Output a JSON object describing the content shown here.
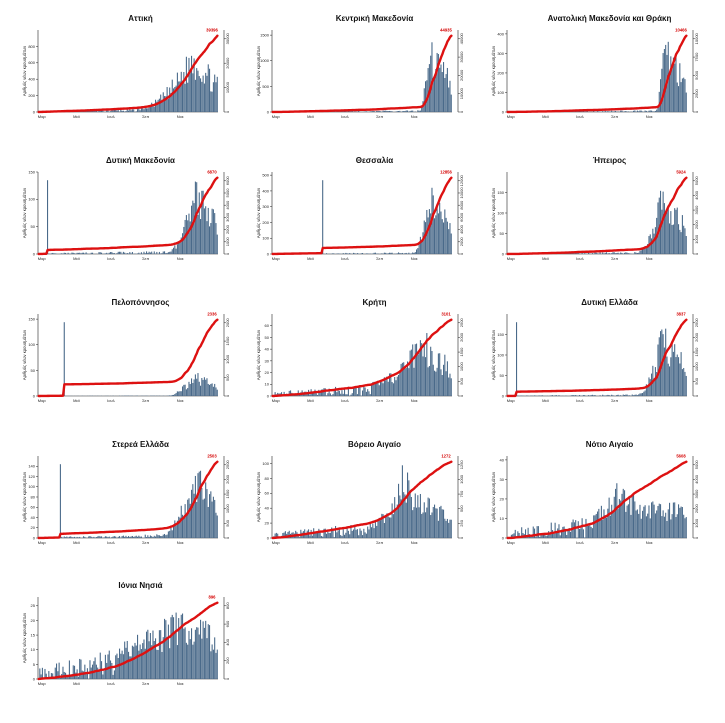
{
  "figure": {
    "y_axis_label": "Αριθμός νέων κρουσμάτων",
    "month_labels": [
      "Μαρ",
      "Μαϊ",
      "Ιουλ",
      "Σεπ",
      "Νοε"
    ]
  },
  "colors": {
    "bars": "#4a6a8a",
    "cumulative_line": "#dd1111",
    "axis": "#222222"
  },
  "chart_data": [
    {
      "type": "bar",
      "title": "Αττική",
      "x": [
        "Μαρ",
        "Μαϊ",
        "Ιουλ",
        "Σεπ",
        "Νοε"
      ],
      "ylim": [
        0,
        1000
      ],
      "yticks": [
        0,
        200,
        400,
        600,
        800
      ],
      "cumulative_label": "39396",
      "cumulative_ticks": [
        0,
        10000,
        20000,
        30000
      ],
      "onset": 0.55,
      "peak_pos": 0.86,
      "peak_value": 870,
      "secondary": 0.05,
      "spike": null
    },
    {
      "type": "bar",
      "title": "Κεντρική Μακεδονία",
      "x": [
        "Μαρ",
        "Μαϊ",
        "Ιουλ",
        "Σεπ",
        "Νοε"
      ],
      "ylim": [
        0,
        1600
      ],
      "yticks": [
        0,
        500,
        1000,
        1500
      ],
      "cumulative_label": "44935",
      "cumulative_ticks": [
        0,
        10000,
        20000,
        30000,
        40000
      ],
      "onset": 0.82,
      "peak_pos": 0.86,
      "peak_value": 1550,
      "secondary": 0.02,
      "spike": null
    },
    {
      "type": "bar",
      "title": "Ανατολική Μακεδονία και Θράκη",
      "x": [
        "Μαρ",
        "Μαϊ",
        "Ιουλ",
        "Σεπ",
        "Νοε"
      ],
      "ylim": [
        0,
        420
      ],
      "yticks": [
        0,
        100,
        200,
        300,
        400
      ],
      "cumulative_label": "10466",
      "cumulative_ticks": [
        0,
        2500,
        5000,
        7500,
        10000
      ],
      "onset": 0.82,
      "peak_pos": 0.87,
      "peak_value": 410,
      "secondary": 0.02,
      "spike": null
    },
    {
      "type": "bar",
      "title": "Δυτική Μακεδονία",
      "x": [
        "Μαρ",
        "Μαϊ",
        "Ιουλ",
        "Σεπ",
        "Νοε"
      ],
      "ylim": [
        0,
        150
      ],
      "yticks": [
        0,
        50,
        100,
        150
      ],
      "cumulative_label": "6870",
      "cumulative_ticks": [
        0,
        1000,
        2000,
        3000,
        4000,
        5000,
        6000
      ],
      "onset": 0.72,
      "peak_pos": 0.87,
      "peak_value": 140,
      "secondary": 0.04,
      "spike": 0.05
    },
    {
      "type": "bar",
      "title": "Θεσσαλία",
      "x": [
        "Μαρ",
        "Μαϊ",
        "Ιουλ",
        "Σεπ",
        "Νοε"
      ],
      "ylim": [
        0,
        520
      ],
      "yticks": [
        0,
        100,
        200,
        300,
        400,
        500
      ],
      "cumulative_label": "12856",
      "cumulative_ticks": [
        0,
        2000,
        4000,
        6000,
        8000,
        10000,
        12000
      ],
      "onset": 0.78,
      "peak_pos": 0.87,
      "peak_value": 510,
      "secondary": 0.02,
      "spike": 0.28
    },
    {
      "type": "bar",
      "title": "Ήπειρος",
      "x": [
        "Μαρ",
        "Μαϊ",
        "Ιουλ",
        "Σεπ",
        "Νοε"
      ],
      "ylim": [
        0,
        200
      ],
      "yticks": [
        0,
        50,
        100,
        150
      ],
      "cumulative_label": "5924",
      "cumulative_ticks": [
        0,
        1000,
        2000,
        3000,
        4000,
        5000
      ],
      "onset": 0.72,
      "peak_pos": 0.86,
      "peak_value": 180,
      "secondary": 0.03,
      "spike": null
    },
    {
      "type": "bar",
      "title": "Πελοπόννησος",
      "x": [
        "Μαρ",
        "Μαϊ",
        "Ιουλ",
        "Σεπ",
        "Νοε"
      ],
      "ylim": [
        0,
        160
      ],
      "yticks": [
        0,
        50,
        100,
        150
      ],
      "cumulative_label": "2336",
      "cumulative_ticks": [
        0,
        500,
        1000,
        1500,
        2000
      ],
      "onset": 0.72,
      "peak_pos": 0.86,
      "peak_value": 50,
      "secondary": 0.02,
      "spike": 0.14
    },
    {
      "type": "bar",
      "title": "Κρήτη",
      "x": [
        "Μαρ",
        "Μαϊ",
        "Ιουλ",
        "Σεπ",
        "Νοε"
      ],
      "ylim": [
        0,
        70
      ],
      "yticks": [
        0,
        10,
        20,
        30,
        40,
        50,
        60
      ],
      "cumulative_label": "3101",
      "cumulative_ticks": [
        0,
        500,
        1000,
        1500,
        2000,
        2500
      ],
      "onset": 0.55,
      "peak_pos": 0.83,
      "peak_value": 60,
      "secondary": 0.2,
      "spike": null
    },
    {
      "type": "bar",
      "title": "Δυτική Ελλάδα",
      "x": [
        "Μαρ",
        "Μαϊ",
        "Ιουλ",
        "Σεπ",
        "Νοε"
      ],
      "ylim": [
        0,
        200
      ],
      "yticks": [
        0,
        50,
        100,
        150
      ],
      "cumulative_label": "3837",
      "cumulative_ticks": [
        0,
        500,
        1000,
        1500,
        2000,
        2500
      ],
      "onset": 0.72,
      "peak_pos": 0.86,
      "peak_value": 190,
      "secondary": 0.02,
      "spike": 0.05
    },
    {
      "type": "bar",
      "title": "Στερεά Ελλάδα",
      "x": [
        "Μαρ",
        "Μαϊ",
        "Ιουλ",
        "Σεπ",
        "Νοε"
      ],
      "ylim": [
        0,
        160
      ],
      "yticks": [
        0,
        20,
        40,
        60,
        80,
        100,
        120,
        140
      ],
      "cumulative_label": "2503",
      "cumulative_ticks": [
        0,
        500,
        1000,
        1500,
        2000,
        2500
      ],
      "onset": 0.68,
      "peak_pos": 0.87,
      "peak_value": 150,
      "secondary": 0.05,
      "spike": 0.12
    },
    {
      "type": "bar",
      "title": "Βόρειο Αιγαίο",
      "x": [
        "Μαρ",
        "Μαϊ",
        "Ιουλ",
        "Σεπ",
        "Νοε"
      ],
      "ylim": [
        0,
        110
      ],
      "yticks": [
        0,
        20,
        40,
        60,
        80,
        100
      ],
      "cumulative_label": "1272",
      "cumulative_ticks": [
        0,
        250,
        500,
        750,
        1000,
        1250
      ],
      "onset": 0.55,
      "peak_pos": 0.72,
      "peak_value": 100,
      "secondary": 0.25,
      "spike": null
    },
    {
      "type": "bar",
      "title": "Νότιο Αιγαίο",
      "x": [
        "Μαρ",
        "Μαϊ",
        "Ιουλ",
        "Σεπ",
        "Νοε"
      ],
      "ylim": [
        0,
        42
      ],
      "yticks": [
        0,
        10,
        20,
        30,
        40
      ],
      "cumulative_label": "5608",
      "cumulative_ticks": [
        0,
        1000,
        2000,
        3000,
        4000,
        5000
      ],
      "onset": 0.48,
      "peak_pos": 0.6,
      "peak_value": 30,
      "secondary": 0.5,
      "spike": null
    },
    {
      "type": "bar",
      "title": "Ιόνια Νησιά",
      "x": [
        "Μαρ",
        "Μαϊ",
        "Ιουλ",
        "Σεπ",
        "Νοε"
      ],
      "ylim": [
        0,
        28
      ],
      "yticks": [
        0,
        5,
        10,
        15,
        20,
        25
      ],
      "cumulative_label": "896",
      "cumulative_ticks": [
        0,
        200,
        400,
        600,
        800
      ],
      "onset": 0.45,
      "peak_pos": 0.8,
      "peak_value": 26,
      "secondary": 0.55,
      "spike": null
    }
  ]
}
